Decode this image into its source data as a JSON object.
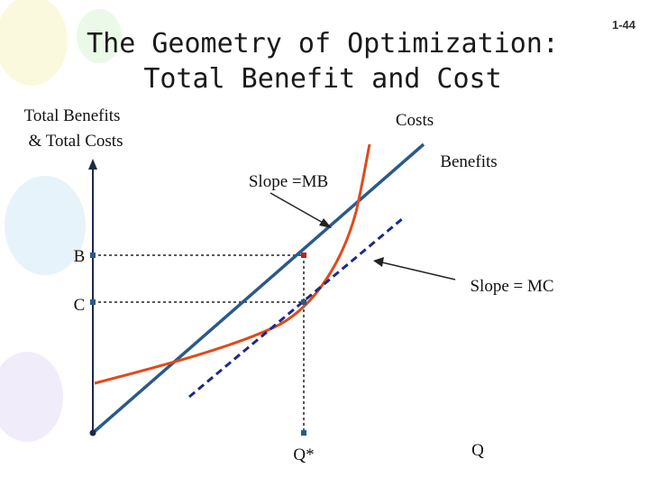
{
  "slide_number": "1-44",
  "title": {
    "line1": "The Geometry of Optimization:",
    "line2": "Total Benefit and Cost"
  },
  "y_axis_label": {
    "line1": "Total Benefits",
    "line2": "& Total Costs"
  },
  "curve_labels": {
    "costs": "Costs",
    "benefits": "Benefits"
  },
  "annotations": {
    "slope_mb": "Slope =MB",
    "slope_mc": "Slope = MC"
  },
  "axis_points": {
    "b": "B",
    "c": "C",
    "q_star": "Q*",
    "q": "Q"
  }
}
